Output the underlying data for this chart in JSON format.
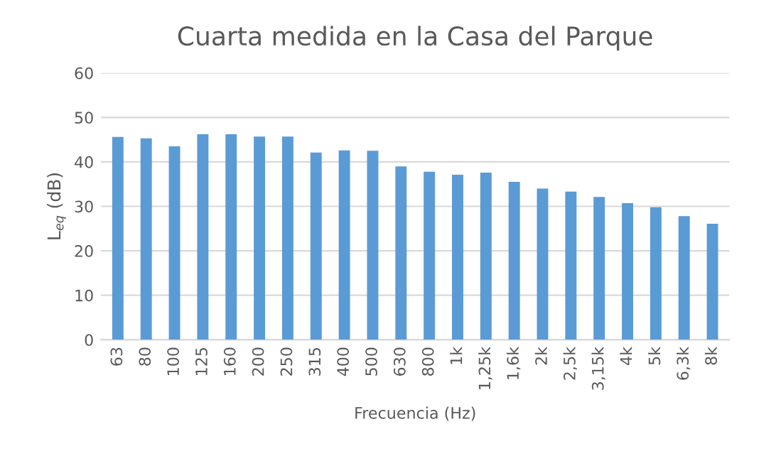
{
  "chart_data": {
    "type": "bar",
    "title": "Cuarta medida en la Casa del Parque",
    "xlabel": "Frecuencia (Hz)",
    "ylabel": "L$_{eq}$ (dB)",
    "categories": [
      "63",
      "80",
      "100",
      "125",
      "160",
      "200",
      "250",
      "315",
      "400",
      "500",
      "630",
      "800",
      "1k",
      "1,25k",
      "1,6k",
      "2k",
      "2,5k",
      "3,15k",
      "4k",
      "5k",
      "6,3k",
      "8k"
    ],
    "values": [
      45.6,
      45.3,
      43.5,
      46.2,
      46.2,
      45.7,
      45.7,
      42.1,
      42.6,
      42.5,
      39.0,
      37.8,
      37.1,
      37.6,
      35.5,
      34.0,
      33.3,
      32.1,
      30.7,
      29.8,
      27.8,
      26.1
    ],
    "color": "#5b9bd5",
    "ylim": [
      0,
      60
    ],
    "yticks": [
      0,
      10,
      20,
      30,
      40,
      50,
      60
    ],
    "grid": "y"
  }
}
